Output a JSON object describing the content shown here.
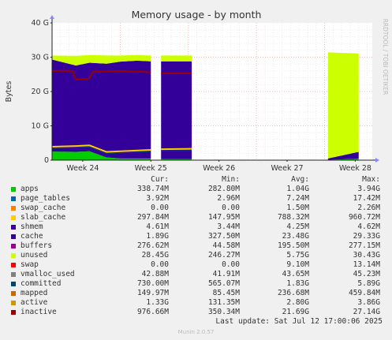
{
  "chart_data": {
    "type": "area",
    "title": "Memory usage - by month",
    "ylabel": "Bytes",
    "side_label": "RRDTOOL / TOBI OETIKER",
    "x_ticks": [
      "Week 24",
      "Week 25",
      "Week 26",
      "Week 27",
      "Week 28"
    ],
    "y_ticks": [
      "0",
      "10 G",
      "20 G",
      "30 G",
      "40 G"
    ],
    "y_tick_values": [
      0,
      10,
      20,
      30,
      40
    ],
    "ylim": [
      0,
      40
    ],
    "x_range": [
      0,
      4.7
    ],
    "segments": [
      [
        0,
        1.45
      ],
      [
        1.6,
        2.05
      ],
      [
        4.05,
        4.5
      ]
    ],
    "stack_profile": [
      {
        "x": 0.0,
        "apps": 2.5,
        "cache": 26.8,
        "unused": 1.2
      },
      {
        "x": 0.35,
        "apps": 2.4,
        "cache": 25.2,
        "unused": 2.8
      },
      {
        "x": 0.55,
        "apps": 2.6,
        "cache": 25.8,
        "unused": 2.2
      },
      {
        "x": 0.8,
        "apps": 0.8,
        "cache": 27.3,
        "unused": 2.4
      },
      {
        "x": 1.0,
        "apps": 0.5,
        "cache": 28.2,
        "unused": 1.8
      },
      {
        "x": 1.25,
        "apps": 0.5,
        "cache": 28.5,
        "unused": 1.6
      },
      {
        "x": 1.45,
        "apps": 0.5,
        "cache": 28.3,
        "unused": 1.7
      },
      {
        "x": 1.6,
        "apps": 0.3,
        "cache": 28.5,
        "unused": 1.7
      },
      {
        "x": 2.05,
        "apps": 0.3,
        "cache": 28.5,
        "unused": 1.7
      },
      {
        "x": 4.05,
        "apps": 0.1,
        "cache": 0.4,
        "unused": 30.9
      },
      {
        "x": 4.5,
        "apps": 0.4,
        "cache": 2.0,
        "unused": 28.7
      }
    ],
    "inactive_line": [
      {
        "x": 0.0,
        "y": 26.0
      },
      {
        "x": 0.3,
        "y": 26.0
      },
      {
        "x": 0.35,
        "y": 23.5
      },
      {
        "x": 0.55,
        "y": 23.8
      },
      {
        "x": 0.6,
        "y": 25.8
      },
      {
        "x": 1.0,
        "y": 26.0
      },
      {
        "x": 1.45,
        "y": 25.6
      },
      {
        "x": 1.6,
        "y": 25.3
      },
      {
        "x": 2.05,
        "y": 25.3
      }
    ],
    "committed_line": [
      {
        "x": 0.0,
        "y": 3.9
      },
      {
        "x": 0.35,
        "y": 4.1
      },
      {
        "x": 0.55,
        "y": 4.3
      },
      {
        "x": 0.8,
        "y": 2.4
      },
      {
        "x": 1.0,
        "y": 2.6
      },
      {
        "x": 1.45,
        "y": 3.0
      },
      {
        "x": 1.6,
        "y": 3.2
      },
      {
        "x": 2.05,
        "y": 3.3
      }
    ],
    "columns": [
      "Cur:",
      "Min:",
      "Avg:",
      "Max:"
    ],
    "series": [
      {
        "name": "apps",
        "color": "#00cc00",
        "cur": "338.74M",
        "min": "282.80M",
        "avg": "1.04G",
        "max": "3.94G"
      },
      {
        "name": "page_tables",
        "color": "#0066b3",
        "cur": "3.92M",
        "min": "2.96M",
        "avg": "7.24M",
        "max": "17.42M"
      },
      {
        "name": "swap_cache",
        "color": "#ff8000",
        "cur": "0.00",
        "min": "0.00",
        "avg": "1.50M",
        "max": "2.26M"
      },
      {
        "name": "slab_cache",
        "color": "#ffcc00",
        "cur": "297.84M",
        "min": "147.95M",
        "avg": "788.32M",
        "max": "960.72M"
      },
      {
        "name": "shmem",
        "color": "#330099",
        "cur": "4.61M",
        "min": "3.44M",
        "avg": "4.25M",
        "max": "4.62M"
      },
      {
        "name": "cache",
        "color": "#330099",
        "cur": "1.89G",
        "min": "327.50M",
        "avg": "23.48G",
        "max": "29.33G"
      },
      {
        "name": "buffers",
        "color": "#990099",
        "cur": "276.62M",
        "min": "44.58M",
        "avg": "195.50M",
        "max": "277.15M"
      },
      {
        "name": "unused",
        "color": "#ccff00",
        "cur": "28.45G",
        "min": "246.27M",
        "avg": "5.75G",
        "max": "30.43G"
      },
      {
        "name": "swap",
        "color": "#ff0000",
        "cur": "0.00",
        "min": "0.00",
        "avg": "9.10M",
        "max": "13.14M"
      },
      {
        "name": "vmalloc_used",
        "color": "#808080",
        "cur": "42.88M",
        "min": "41.91M",
        "avg": "43.65M",
        "max": "45.23M"
      },
      {
        "name": "committed",
        "color": "#00476e",
        "cur": "730.00M",
        "min": "565.07M",
        "avg": "1.83G",
        "max": "5.89G"
      },
      {
        "name": "mapped",
        "color": "#cc6600",
        "cur": "149.97M",
        "min": "85.45M",
        "avg": "236.68M",
        "max": "459.84M"
      },
      {
        "name": "active",
        "color": "#cc9900",
        "cur": "1.33G",
        "min": "131.35M",
        "avg": "2.80G",
        "max": "3.86G"
      },
      {
        "name": "inactive",
        "color": "#990000",
        "cur": "976.66M",
        "min": "350.34M",
        "avg": "21.69G",
        "max": "27.14G"
      }
    ]
  },
  "footer": {
    "last_update": "Last update: Sat Jul 12 17:00:06 2025",
    "munin": "Munin 2.0.57"
  }
}
